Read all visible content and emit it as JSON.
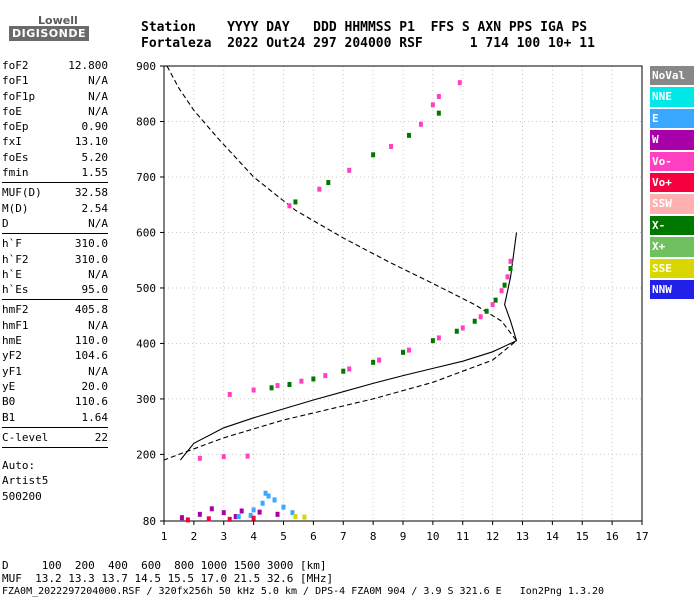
{
  "logo": {
    "line1": "Lowell",
    "line2": "DIGISONDE"
  },
  "header": {
    "row1": "Station    YYYY DAY   DDD HHMMSS P1  FFS S AXN PPS IGA PS",
    "row2": "Fortaleza  2022 Out24 297 204000 RSF      1 714 100 10+ 11"
  },
  "params": [
    [
      {
        "name": "foF2",
        "value": "12.800"
      },
      {
        "name": "foF1",
        "value": "N/A"
      },
      {
        "name": "foF1p",
        "value": "N/A"
      },
      {
        "name": "foE",
        "value": "N/A"
      },
      {
        "name": "foEp",
        "value": "0.90"
      },
      {
        "name": "fxI",
        "value": "13.10"
      },
      {
        "name": "foEs",
        "value": "5.20"
      },
      {
        "name": "fmin",
        "value": "1.55"
      }
    ],
    [
      {
        "name": "MUF(D)",
        "value": "32.58"
      },
      {
        "name": "M(D)",
        "value": "2.54"
      },
      {
        "name": "D",
        "value": "N/A"
      }
    ],
    [
      {
        "name": "h`F",
        "value": "310.0"
      },
      {
        "name": "h`F2",
        "value": "310.0"
      },
      {
        "name": "h`E",
        "value": "N/A"
      },
      {
        "name": "h`Es",
        "value": "95.0"
      }
    ],
    [
      {
        "name": "hmF2",
        "value": "405.8"
      },
      {
        "name": "hmF1",
        "value": "N/A"
      },
      {
        "name": "hmE",
        "value": "110.0"
      },
      {
        "name": "yF2",
        "value": "104.6"
      },
      {
        "name": "yF1",
        "value": "N/A"
      },
      {
        "name": "yE",
        "value": "20.0"
      },
      {
        "name": "B0",
        "value": "110.6"
      },
      {
        "name": "B1",
        "value": "1.64"
      }
    ],
    [
      {
        "name": "C-level",
        "value": "22"
      }
    ]
  ],
  "autoscale": [
    "Auto:",
    "Artist5",
    "500200"
  ],
  "legend": [
    {
      "label": "NoVal",
      "color": "#888888"
    },
    {
      "label": "NNE",
      "color": "#00e8e8"
    },
    {
      "label": "E",
      "color": "#3aa8ff"
    },
    {
      "label": "W",
      "color": "#a800a8"
    },
    {
      "label": "Vo-",
      "color": "#ff40c0"
    },
    {
      "label": "Vo+",
      "color": "#f80040"
    },
    {
      "label": "SSW",
      "color": "#ffb0b0"
    },
    {
      "label": "X-",
      "color": "#007800"
    },
    {
      "label": "X+",
      "color": "#70c060"
    },
    {
      "label": "SSE",
      "color": "#d8d800"
    },
    {
      "label": "NNW",
      "color": "#2020e8"
    }
  ],
  "footer": {
    "row1": "D     100  200  400  600  800 1000 1500 3000 [km]",
    "row2": "MUF  13.2 13.3 13.7 14.5 15.5 17.0 21.5 32.6 [MHz]",
    "row3": "FZA0M_2022297204000.RSF / 320fx256h 50 kHz 5.0 km / DPS-4 FZA0M 904 / 3.9 S 321.6 E   Ion2Png 1.3.20"
  },
  "chart_data": {
    "type": "scatter",
    "title": "",
    "xlabel": "",
    "ylabel": "",
    "xlim": [
      1,
      17
    ],
    "ylim": [
      80,
      900
    ],
    "x_ticks": [
      1,
      2,
      3,
      4,
      5,
      6,
      7,
      8,
      9,
      10,
      11,
      12,
      13,
      14,
      15,
      16,
      17
    ],
    "y_ticks": [
      80,
      200,
      300,
      400,
      500,
      600,
      700,
      800,
      900
    ],
    "grid": true,
    "legend_position": "right",
    "series": [
      {
        "name": "X-",
        "color": "#007800",
        "points": [
          [
            4.6,
            320
          ],
          [
            5.2,
            326
          ],
          [
            6.0,
            336
          ],
          [
            7.0,
            350
          ],
          [
            8.0,
            366
          ],
          [
            9.0,
            384
          ],
          [
            10.0,
            405
          ],
          [
            10.8,
            422
          ],
          [
            11.4,
            440
          ],
          [
            11.8,
            458
          ],
          [
            12.1,
            478
          ],
          [
            12.4,
            505
          ],
          [
            12.6,
            535
          ],
          [
            5.4,
            655
          ],
          [
            6.5,
            690
          ],
          [
            8.0,
            740
          ],
          [
            9.2,
            775
          ],
          [
            10.2,
            815
          ]
        ]
      },
      {
        "name": "Vo-",
        "color": "#ff40c0",
        "points": [
          [
            3.2,
            308
          ],
          [
            4.0,
            316
          ],
          [
            4.8,
            324
          ],
          [
            5.6,
            332
          ],
          [
            6.4,
            342
          ],
          [
            7.2,
            354
          ],
          [
            8.2,
            370
          ],
          [
            9.2,
            388
          ],
          [
            10.2,
            410
          ],
          [
            11.0,
            428
          ],
          [
            11.6,
            448
          ],
          [
            12.0,
            470
          ],
          [
            12.3,
            495
          ],
          [
            12.5,
            520
          ],
          [
            12.6,
            548
          ],
          [
            5.2,
            648
          ],
          [
            6.2,
            678
          ],
          [
            7.2,
            712
          ],
          [
            8.6,
            755
          ],
          [
            9.6,
            795
          ],
          [
            10.0,
            830
          ],
          [
            10.2,
            845
          ],
          [
            10.9,
            870
          ],
          [
            2.2,
            193
          ],
          [
            3.0,
            196
          ],
          [
            3.8,
            197
          ]
        ]
      },
      {
        "name": "W",
        "color": "#a800a8",
        "points": [
          [
            1.6,
            86
          ],
          [
            2.2,
            92
          ],
          [
            3.0,
            95
          ],
          [
            3.6,
            98
          ],
          [
            4.2,
            96
          ],
          [
            4.8,
            92
          ],
          [
            2.6,
            102
          ],
          [
            3.4,
            88
          ]
        ]
      },
      {
        "name": "E",
        "color": "#3aa8ff",
        "points": [
          [
            4.0,
            100
          ],
          [
            4.3,
            112
          ],
          [
            4.5,
            125
          ],
          [
            4.7,
            118
          ],
          [
            5.0,
            105
          ],
          [
            4.4,
            130
          ],
          [
            3.9,
            90
          ],
          [
            5.3,
            95
          ],
          [
            3.5,
            88
          ]
        ]
      },
      {
        "name": "Vo+",
        "color": "#f80040",
        "points": [
          [
            1.8,
            82
          ],
          [
            2.5,
            84
          ],
          [
            3.2,
            83
          ],
          [
            4.0,
            85
          ]
        ]
      },
      {
        "name": "SSE",
        "color": "#d8d800",
        "points": [
          [
            5.4,
            88
          ],
          [
            5.7,
            87
          ]
        ]
      }
    ],
    "profile_solid": [
      [
        1.55,
        190
      ],
      [
        2.0,
        220
      ],
      [
        3.0,
        248
      ],
      [
        4.0,
        266
      ],
      [
        5.0,
        282
      ],
      [
        6.0,
        298
      ],
      [
        7.0,
        313
      ],
      [
        8.0,
        328
      ],
      [
        9.0,
        342
      ],
      [
        10.0,
        355
      ],
      [
        11.0,
        368
      ],
      [
        12.0,
        385
      ],
      [
        12.8,
        405
      ],
      [
        12.6,
        440
      ],
      [
        12.4,
        470
      ],
      [
        12.6,
        520
      ],
      [
        12.8,
        600
      ]
    ],
    "profile_dashed": [
      [
        1.1,
        900
      ],
      [
        1.5,
        860
      ],
      [
        2.0,
        820
      ],
      [
        2.8,
        770
      ],
      [
        4.0,
        700
      ],
      [
        5.4,
        640
      ],
      [
        7.0,
        590
      ],
      [
        8.6,
        545
      ],
      [
        10.0,
        508
      ],
      [
        11.4,
        470
      ],
      [
        12.3,
        440
      ],
      [
        12.8,
        405
      ],
      [
        12.0,
        370
      ],
      [
        10.0,
        330
      ],
      [
        8.0,
        300
      ],
      [
        5.0,
        262
      ],
      [
        3.0,
        230
      ],
      [
        1.5,
        200
      ],
      [
        1.0,
        190
      ]
    ]
  }
}
